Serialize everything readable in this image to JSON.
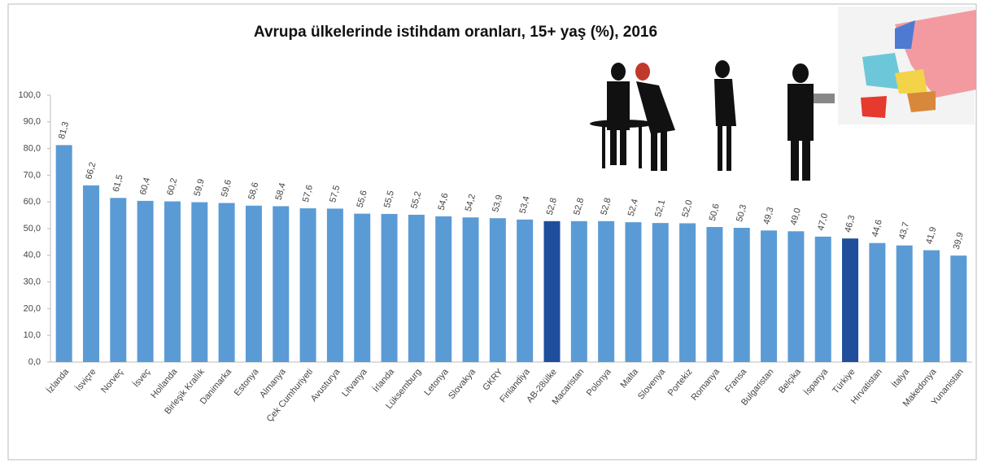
{
  "chart_data": {
    "type": "bar",
    "title": "Avrupa ülkelerinde istihdam oranları, 15+ yaş (%), 2016",
    "categories": [
      "İzlanda",
      "İsviçre",
      "Norveç",
      "İsveç",
      "Hollanda",
      "Birleşik Krallık",
      "Danimarka",
      "Estonya",
      "Almanya",
      "Çek Cumhuriyeti",
      "Avusturya",
      "Litvanya",
      "İrlanda",
      "Lüksemburg",
      "Letonya",
      "Slovakya",
      "GKRY",
      "Finlandiya",
      "AB-28ülke",
      "Macaristan",
      "Polonya",
      "Malta",
      "Slovenya",
      "Portekiz",
      "Romanya",
      "Fransa",
      "Bulgaristan",
      "Belçika",
      "İspanya",
      "Türkiye",
      "Hırvatistan",
      "İtalya",
      "Makedonya",
      "Yunanistan"
    ],
    "values": [
      81.3,
      66.2,
      61.5,
      60.4,
      60.2,
      59.9,
      59.6,
      58.6,
      58.4,
      57.6,
      57.5,
      55.6,
      55.5,
      55.2,
      54.6,
      54.2,
      53.9,
      53.4,
      52.8,
      52.8,
      52.8,
      52.4,
      52.1,
      52.0,
      50.6,
      50.3,
      49.3,
      49.0,
      47.0,
      46.3,
      44.6,
      43.7,
      41.9,
      39.9
    ],
    "value_labels": [
      "81,3",
      "66,2",
      "61,5",
      "60,4",
      "60,2",
      "59,9",
      "59,6",
      "58,6",
      "58,4",
      "57,6",
      "57,5",
      "55,6",
      "55,5",
      "55,2",
      "54,6",
      "54,2",
      "53,9",
      "53,4",
      "52,8",
      "52,8",
      "52,8",
      "52,4",
      "52,1",
      "52,0",
      "50,6",
      "50,3",
      "49,3",
      "49,0",
      "47,0",
      "46,3",
      "44,6",
      "43,7",
      "41,9",
      "39,9"
    ],
    "colors": [
      "#5b9bd5",
      "#5b9bd5",
      "#5b9bd5",
      "#5b9bd5",
      "#5b9bd5",
      "#5b9bd5",
      "#5b9bd5",
      "#5b9bd5",
      "#5b9bd5",
      "#5b9bd5",
      "#5b9bd5",
      "#5b9bd5",
      "#5b9bd5",
      "#5b9bd5",
      "#5b9bd5",
      "#5b9bd5",
      "#5b9bd5",
      "#5b9bd5",
      "#1f4e9c",
      "#5b9bd5",
      "#5b9bd5",
      "#5b9bd5",
      "#5b9bd5",
      "#5b9bd5",
      "#5b9bd5",
      "#5b9bd5",
      "#5b9bd5",
      "#5b9bd5",
      "#5b9bd5",
      "#1f4e9c",
      "#5b9bd5",
      "#5b9bd5",
      "#5b9bd5",
      "#5b9bd5"
    ],
    "ylim": [
      0,
      100
    ],
    "yticks": [
      {
        "value": 0,
        "label": "0,0"
      },
      {
        "value": 10,
        "label": "10,0"
      },
      {
        "value": 20,
        "label": "20,0"
      },
      {
        "value": 30,
        "label": "30,0"
      },
      {
        "value": 40,
        "label": "40,0"
      },
      {
        "value": 50,
        "label": "50,0"
      },
      {
        "value": 60,
        "label": "60,0"
      },
      {
        "value": 70,
        "label": "70,0"
      },
      {
        "value": 80,
        "label": "80,0"
      },
      {
        "value": 90,
        "label": "90,0"
      },
      {
        "value": 100,
        "label": "100,0"
      }
    ],
    "grid": false
  }
}
